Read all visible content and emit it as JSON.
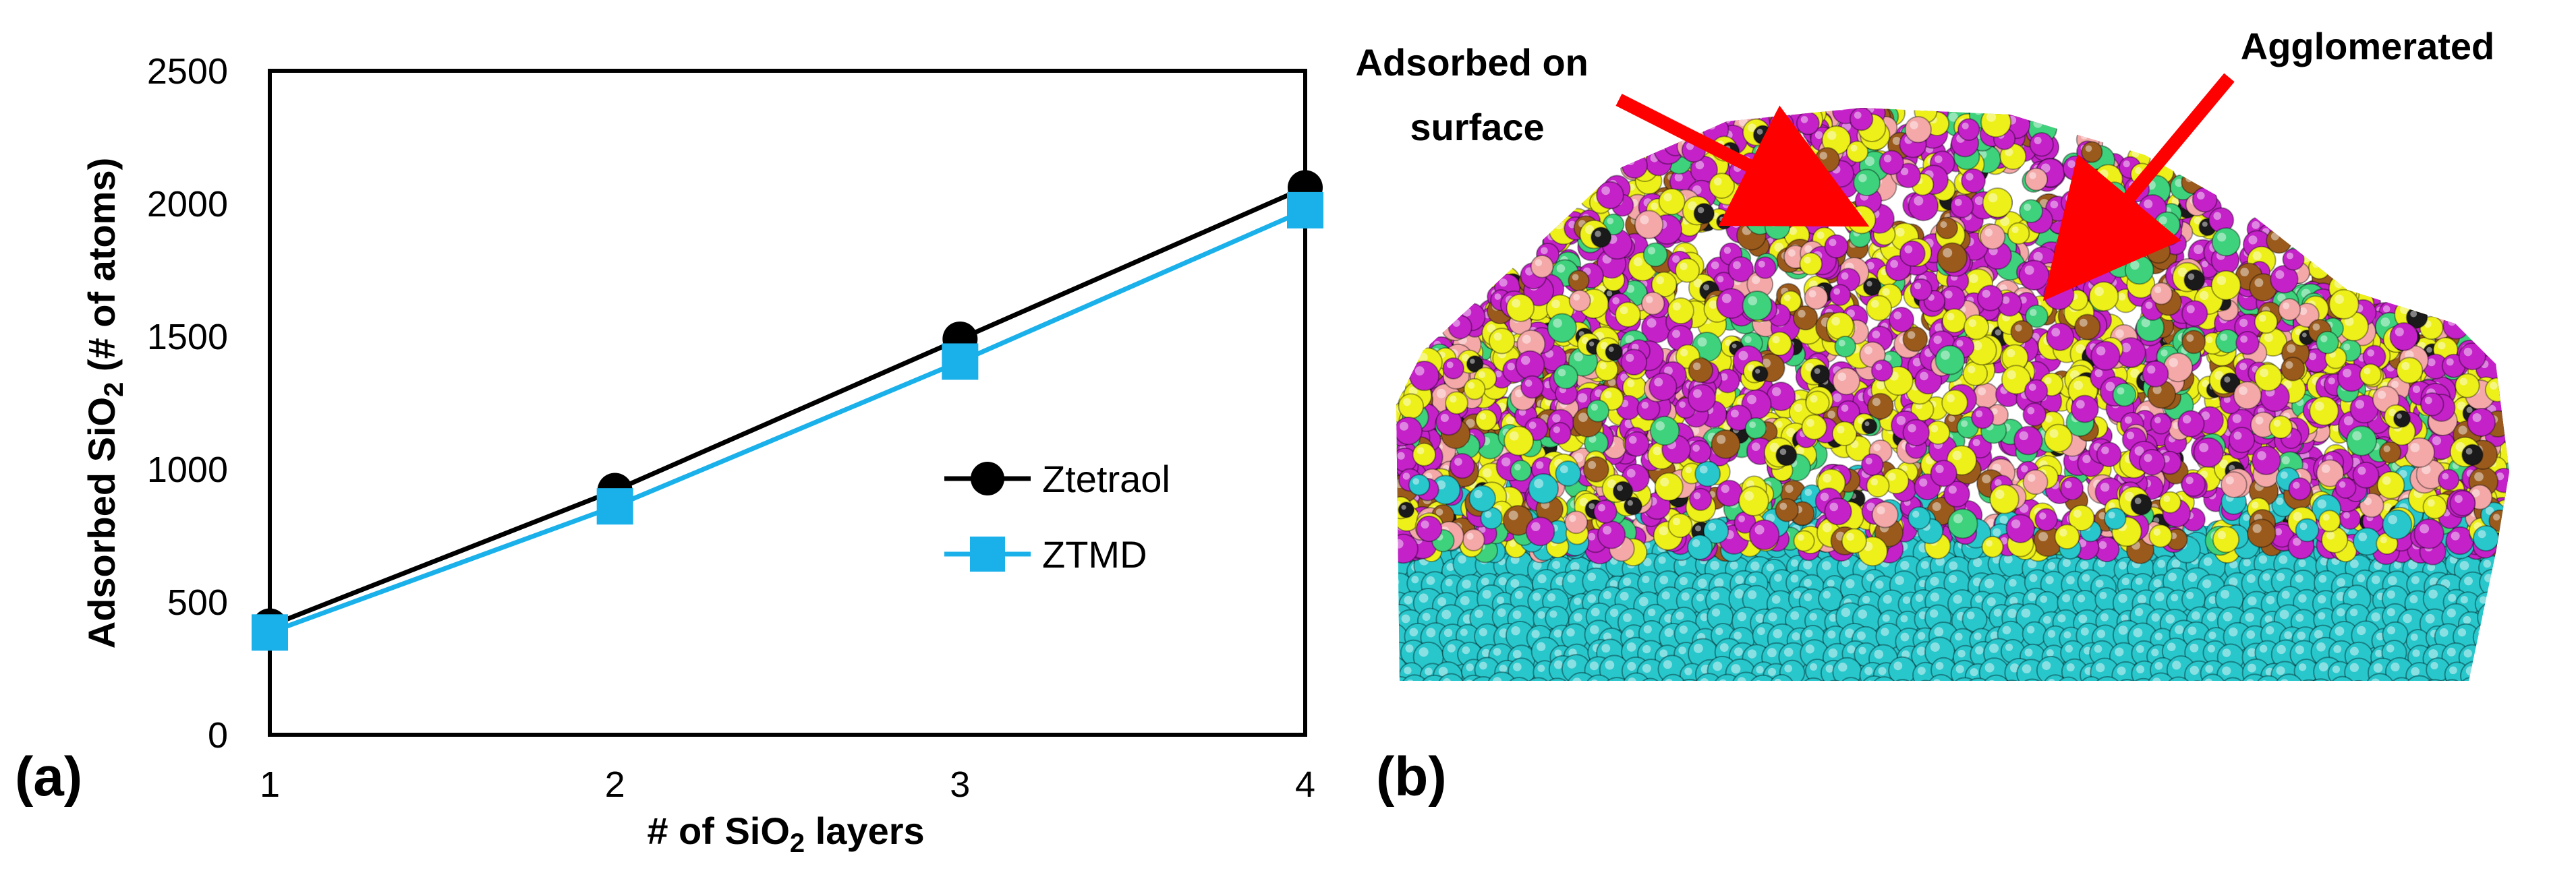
{
  "panel_labels": {
    "a": "(a)",
    "b": "(b)"
  },
  "chart_data": {
    "type": "line",
    "x": [
      1,
      2,
      3,
      4
    ],
    "xlim": [
      1,
      4
    ],
    "ylim": [
      0,
      2500
    ],
    "x_ticks": [
      "1",
      "2",
      "3",
      "4"
    ],
    "y_ticks": [
      "0",
      "500",
      "1000",
      "1500",
      "2000",
      "2500"
    ],
    "y_tick_values": [
      0,
      500,
      1000,
      1500,
      2000,
      2500
    ],
    "xlabel": {
      "pre": "# of SiO",
      "sub": "2",
      "post": " layers"
    },
    "ylabel": {
      "pre": "Adsorbed SiO",
      "sub": "2",
      "post": " (# of atoms)"
    },
    "grid": false,
    "legend_position": "right-middle",
    "series": [
      {
        "name": "Ztetraol",
        "values": [
          410,
          920,
          1490,
          2060
        ],
        "color": "#000000",
        "marker": "circle"
      },
      {
        "name": "ZTMD",
        "values": [
          385,
          860,
          1405,
          1975
        ],
        "color": "#1ab0ea",
        "marker": "square"
      }
    ]
  },
  "image_b": {
    "annotations": [
      {
        "lines": [
          "Adsorbed on",
          "surface"
        ]
      },
      {
        "lines": [
          "Agglomerated"
        ]
      }
    ],
    "arrow_color": "#ff0000",
    "colors": {
      "substrate": "#27c7cc",
      "magenta": "#c421c8",
      "yellow": "#eef01a",
      "pink": "#f4a8a8",
      "brown": "#9a5a1c",
      "green": "#3ed27c",
      "black": "#1a1a1a"
    }
  }
}
